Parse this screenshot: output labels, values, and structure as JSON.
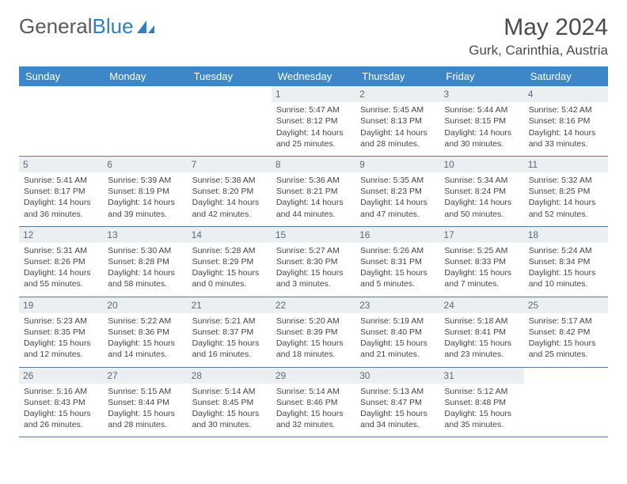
{
  "logo": {
    "text1": "General",
    "text2": "Blue"
  },
  "title": "May 2024",
  "location": "Gurk, Carinthia, Austria",
  "colors": {
    "header_bg": "#3d87c9",
    "header_fg": "#ffffff",
    "daynum_bg": "#eceff2",
    "daynum_fg": "#5a6a78",
    "border": "#5a7a99",
    "text": "#444444"
  },
  "weekdays": [
    "Sunday",
    "Monday",
    "Tuesday",
    "Wednesday",
    "Thursday",
    "Friday",
    "Saturday"
  ],
  "weeks": [
    [
      null,
      null,
      null,
      {
        "n": "1",
        "sr": "Sunrise: 5:47 AM",
        "ss": "Sunset: 8:12 PM",
        "d1": "Daylight: 14 hours",
        "d2": "and 25 minutes."
      },
      {
        "n": "2",
        "sr": "Sunrise: 5:45 AM",
        "ss": "Sunset: 8:13 PM",
        "d1": "Daylight: 14 hours",
        "d2": "and 28 minutes."
      },
      {
        "n": "3",
        "sr": "Sunrise: 5:44 AM",
        "ss": "Sunset: 8:15 PM",
        "d1": "Daylight: 14 hours",
        "d2": "and 30 minutes."
      },
      {
        "n": "4",
        "sr": "Sunrise: 5:42 AM",
        "ss": "Sunset: 8:16 PM",
        "d1": "Daylight: 14 hours",
        "d2": "and 33 minutes."
      }
    ],
    [
      {
        "n": "5",
        "sr": "Sunrise: 5:41 AM",
        "ss": "Sunset: 8:17 PM",
        "d1": "Daylight: 14 hours",
        "d2": "and 36 minutes."
      },
      {
        "n": "6",
        "sr": "Sunrise: 5:39 AM",
        "ss": "Sunset: 8:19 PM",
        "d1": "Daylight: 14 hours",
        "d2": "and 39 minutes."
      },
      {
        "n": "7",
        "sr": "Sunrise: 5:38 AM",
        "ss": "Sunset: 8:20 PM",
        "d1": "Daylight: 14 hours",
        "d2": "and 42 minutes."
      },
      {
        "n": "8",
        "sr": "Sunrise: 5:36 AM",
        "ss": "Sunset: 8:21 PM",
        "d1": "Daylight: 14 hours",
        "d2": "and 44 minutes."
      },
      {
        "n": "9",
        "sr": "Sunrise: 5:35 AM",
        "ss": "Sunset: 8:23 PM",
        "d1": "Daylight: 14 hours",
        "d2": "and 47 minutes."
      },
      {
        "n": "10",
        "sr": "Sunrise: 5:34 AM",
        "ss": "Sunset: 8:24 PM",
        "d1": "Daylight: 14 hours",
        "d2": "and 50 minutes."
      },
      {
        "n": "11",
        "sr": "Sunrise: 5:32 AM",
        "ss": "Sunset: 8:25 PM",
        "d1": "Daylight: 14 hours",
        "d2": "and 52 minutes."
      }
    ],
    [
      {
        "n": "12",
        "sr": "Sunrise: 5:31 AM",
        "ss": "Sunset: 8:26 PM",
        "d1": "Daylight: 14 hours",
        "d2": "and 55 minutes."
      },
      {
        "n": "13",
        "sr": "Sunrise: 5:30 AM",
        "ss": "Sunset: 8:28 PM",
        "d1": "Daylight: 14 hours",
        "d2": "and 58 minutes."
      },
      {
        "n": "14",
        "sr": "Sunrise: 5:28 AM",
        "ss": "Sunset: 8:29 PM",
        "d1": "Daylight: 15 hours",
        "d2": "and 0 minutes."
      },
      {
        "n": "15",
        "sr": "Sunrise: 5:27 AM",
        "ss": "Sunset: 8:30 PM",
        "d1": "Daylight: 15 hours",
        "d2": "and 3 minutes."
      },
      {
        "n": "16",
        "sr": "Sunrise: 5:26 AM",
        "ss": "Sunset: 8:31 PM",
        "d1": "Daylight: 15 hours",
        "d2": "and 5 minutes."
      },
      {
        "n": "17",
        "sr": "Sunrise: 5:25 AM",
        "ss": "Sunset: 8:33 PM",
        "d1": "Daylight: 15 hours",
        "d2": "and 7 minutes."
      },
      {
        "n": "18",
        "sr": "Sunrise: 5:24 AM",
        "ss": "Sunset: 8:34 PM",
        "d1": "Daylight: 15 hours",
        "d2": "and 10 minutes."
      }
    ],
    [
      {
        "n": "19",
        "sr": "Sunrise: 5:23 AM",
        "ss": "Sunset: 8:35 PM",
        "d1": "Daylight: 15 hours",
        "d2": "and 12 minutes."
      },
      {
        "n": "20",
        "sr": "Sunrise: 5:22 AM",
        "ss": "Sunset: 8:36 PM",
        "d1": "Daylight: 15 hours",
        "d2": "and 14 minutes."
      },
      {
        "n": "21",
        "sr": "Sunrise: 5:21 AM",
        "ss": "Sunset: 8:37 PM",
        "d1": "Daylight: 15 hours",
        "d2": "and 16 minutes."
      },
      {
        "n": "22",
        "sr": "Sunrise: 5:20 AM",
        "ss": "Sunset: 8:39 PM",
        "d1": "Daylight: 15 hours",
        "d2": "and 18 minutes."
      },
      {
        "n": "23",
        "sr": "Sunrise: 5:19 AM",
        "ss": "Sunset: 8:40 PM",
        "d1": "Daylight: 15 hours",
        "d2": "and 21 minutes."
      },
      {
        "n": "24",
        "sr": "Sunrise: 5:18 AM",
        "ss": "Sunset: 8:41 PM",
        "d1": "Daylight: 15 hours",
        "d2": "and 23 minutes."
      },
      {
        "n": "25",
        "sr": "Sunrise: 5:17 AM",
        "ss": "Sunset: 8:42 PM",
        "d1": "Daylight: 15 hours",
        "d2": "and 25 minutes."
      }
    ],
    [
      {
        "n": "26",
        "sr": "Sunrise: 5:16 AM",
        "ss": "Sunset: 8:43 PM",
        "d1": "Daylight: 15 hours",
        "d2": "and 26 minutes."
      },
      {
        "n": "27",
        "sr": "Sunrise: 5:15 AM",
        "ss": "Sunset: 8:44 PM",
        "d1": "Daylight: 15 hours",
        "d2": "and 28 minutes."
      },
      {
        "n": "28",
        "sr": "Sunrise: 5:14 AM",
        "ss": "Sunset: 8:45 PM",
        "d1": "Daylight: 15 hours",
        "d2": "and 30 minutes."
      },
      {
        "n": "29",
        "sr": "Sunrise: 5:14 AM",
        "ss": "Sunset: 8:46 PM",
        "d1": "Daylight: 15 hours",
        "d2": "and 32 minutes."
      },
      {
        "n": "30",
        "sr": "Sunrise: 5:13 AM",
        "ss": "Sunset: 8:47 PM",
        "d1": "Daylight: 15 hours",
        "d2": "and 34 minutes."
      },
      {
        "n": "31",
        "sr": "Sunrise: 5:12 AM",
        "ss": "Sunset: 8:48 PM",
        "d1": "Daylight: 15 hours",
        "d2": "and 35 minutes."
      },
      null
    ]
  ]
}
